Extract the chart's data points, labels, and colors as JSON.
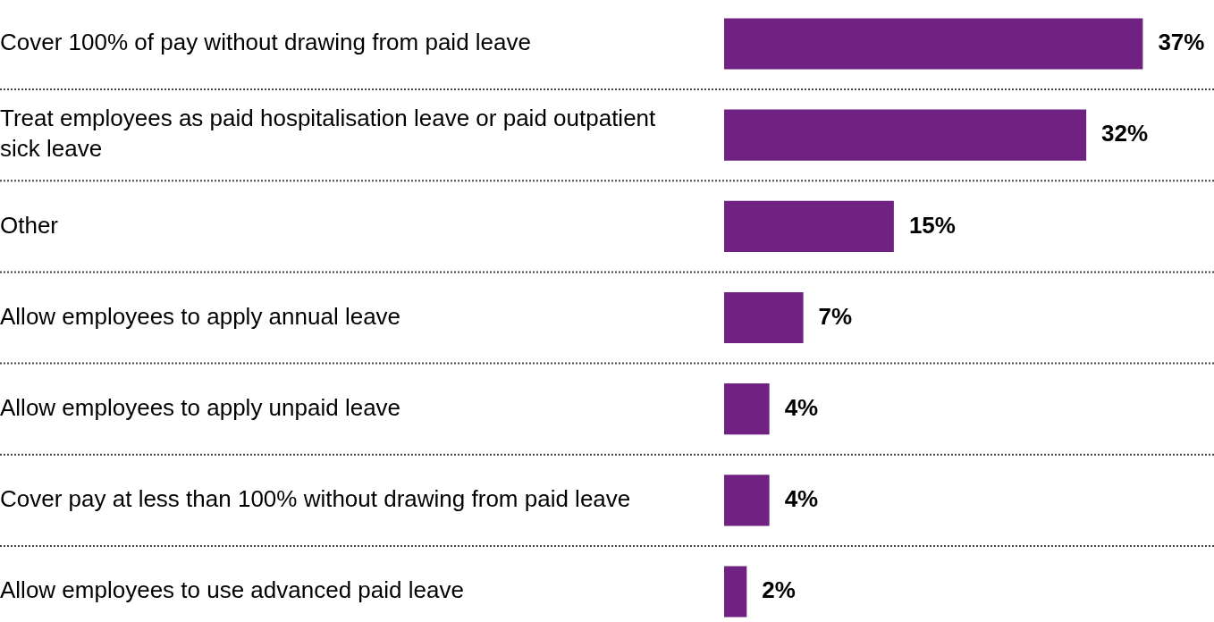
{
  "chart_data": {
    "type": "bar",
    "orientation": "horizontal",
    "categories": [
      "Cover 100% of pay without drawing from paid leave",
      "Treat employees as paid hospitalisation leave or paid outpatient sick leave",
      "Other",
      "Allow employees to apply annual leave",
      "Allow employees to apply unpaid leave",
      "Cover pay at less than 100% without drawing from paid leave",
      "Allow employees to use advanced paid leave"
    ],
    "values": [
      37,
      32,
      15,
      7,
      4,
      4,
      2
    ],
    "value_labels": [
      "37%",
      "32%",
      "15%",
      "7%",
      "4%",
      "4%",
      "2%"
    ],
    "color": "#6f2282",
    "grid": "y",
    "legend": false,
    "tick_labels": "y"
  }
}
